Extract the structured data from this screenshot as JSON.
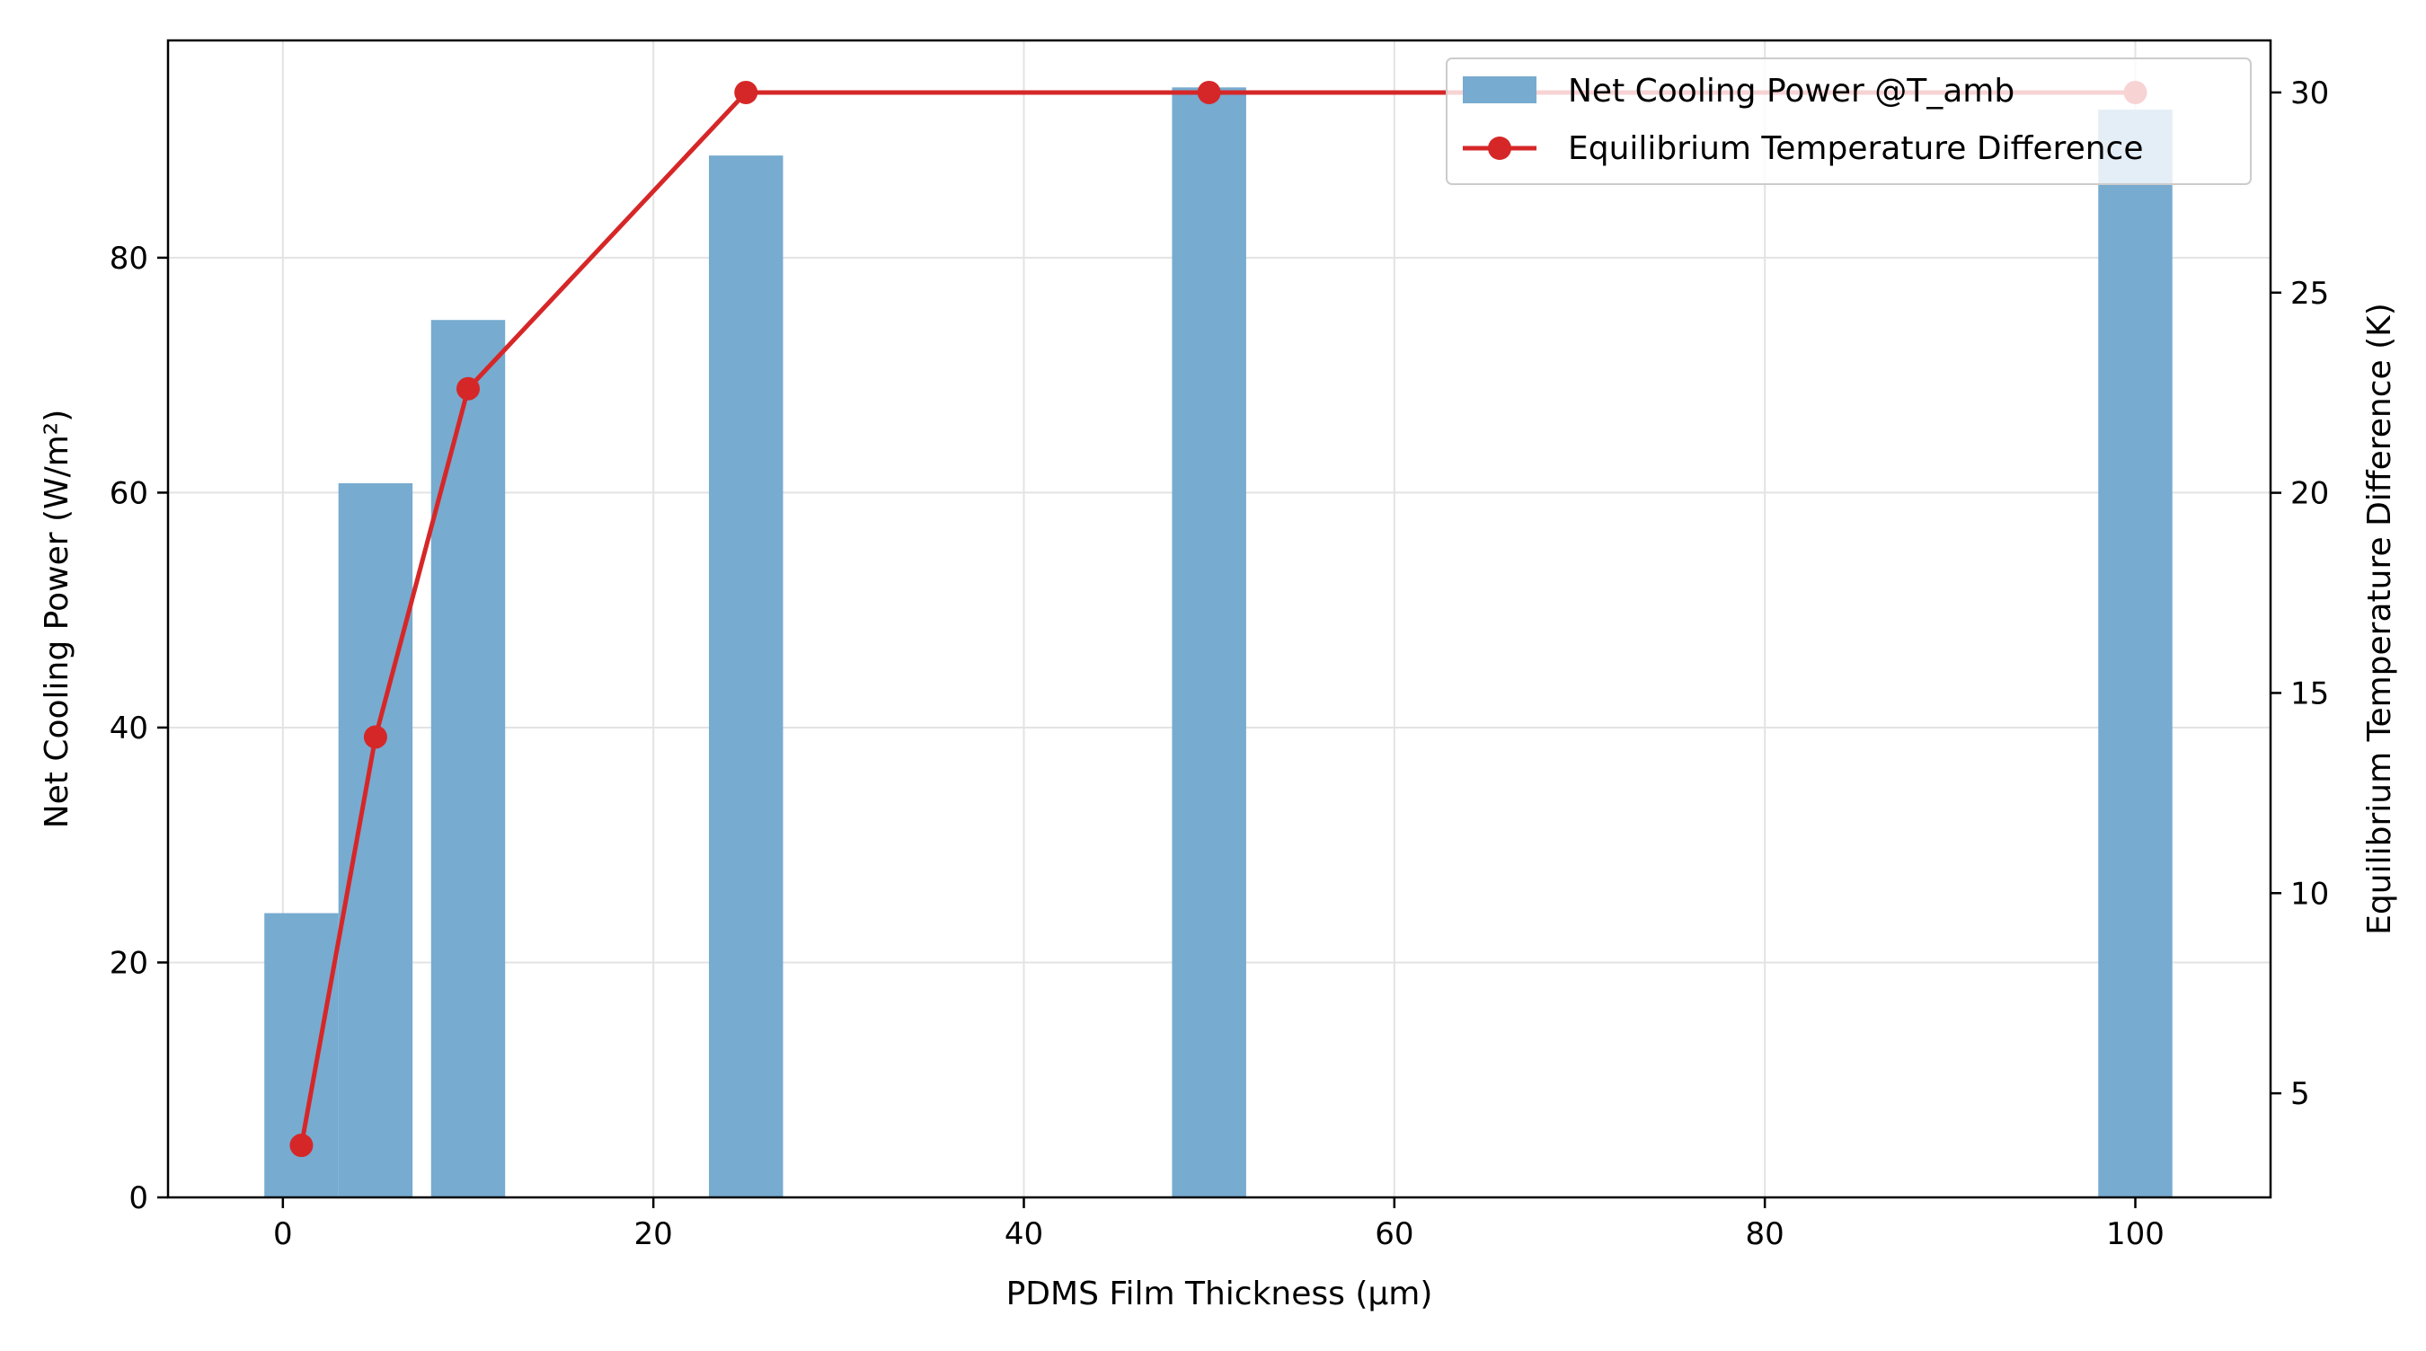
{
  "chart_data": {
    "type": "bar+line",
    "title": "",
    "xlabel": "PDMS Film Thickness (µm)",
    "ylabel_left": "Net Cooling Power (W/m²)",
    "ylabel_right": "Equilibrium Temperature Difference (K)",
    "xlim": [
      -6.2,
      107.3
    ],
    "ylim_left": [
      0,
      98.5
    ],
    "ylim_right": [
      2.4,
      31.3
    ],
    "x_ticks": [
      0,
      20,
      40,
      60,
      80,
      100
    ],
    "y_left_ticks": [
      0,
      20,
      40,
      60,
      80
    ],
    "y_right_ticks": [
      5,
      10,
      15,
      20,
      25,
      30
    ],
    "grid": true,
    "legend_position": "top-right",
    "bar_width_units": 4.0,
    "series": [
      {
        "name": "Net Cooling Power @T_amb",
        "kind": "bar",
        "axis": "left",
        "color": "#77abd0",
        "x": [
          1,
          5,
          10,
          25,
          50,
          100
        ],
        "values": [
          24.2,
          60.8,
          74.7,
          88.7,
          94.5,
          92.6
        ]
      },
      {
        "name": "Equilibrium Temperature Difference",
        "kind": "line",
        "axis": "right",
        "color": "#d62728",
        "marker": "circle",
        "x": [
          1,
          5,
          10,
          25,
          50,
          100
        ],
        "values": [
          3.7,
          13.9,
          22.6,
          30.0,
          30.0,
          30.0
        ]
      }
    ]
  }
}
